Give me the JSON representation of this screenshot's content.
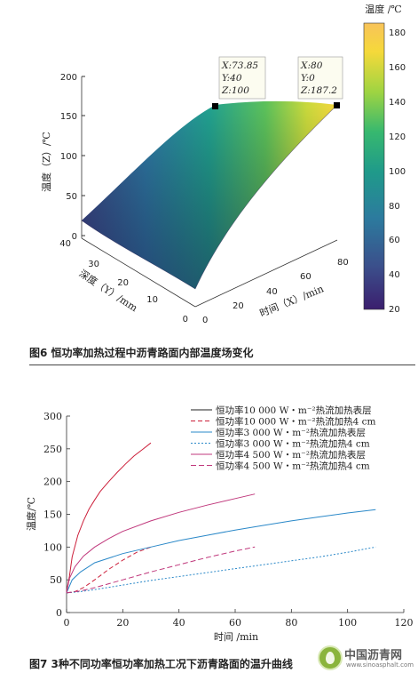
{
  "chart_data": [
    {
      "type": "surface",
      "caption": "图6  恒功率加热过程中沥青路面内部温度场变化",
      "zlabel": "温度（Z）/℃",
      "xlabel": "时间（X）/min",
      "ylabel": "深度（Y）/mm",
      "xticks": [
        "0",
        "20",
        "40",
        "60",
        "80"
      ],
      "yticks": [
        "0",
        "10",
        "20",
        "30",
        "40"
      ],
      "zticks": [
        "0",
        "50",
        "100",
        "150",
        "200"
      ],
      "xlim": [
        0,
        80
      ],
      "ylim": [
        0,
        40
      ],
      "zlim": [
        0,
        200
      ],
      "colorbar": {
        "label": "温度 /℃",
        "ticks": [
          "20",
          "40",
          "60",
          "80",
          "100",
          "120",
          "140",
          "160",
          "180"
        ],
        "range": [
          20,
          187
        ],
        "colors": [
          "#3b1f6e",
          "#3b4f8b",
          "#2c7b9e",
          "#1f9a8a",
          "#37b86f",
          "#9fd442",
          "#f5d93a",
          "#f8c35a"
        ]
      },
      "datatips": [
        {
          "x": 73.85,
          "y": 40,
          "z": 100,
          "x_text": "X:73.85",
          "y_text": "Y:40",
          "z_text": "Z:100"
        },
        {
          "x": 80,
          "y": 0,
          "z": 187.2,
          "x_text": "X:80",
          "y_text": "Y:0",
          "z_text": "Z:187.2"
        }
      ]
    },
    {
      "type": "line",
      "caption": "图7  3种不同功率恒功率加热工况下沥青路面的温升曲线",
      "xlabel": "时间 /min",
      "ylabel": "温度/℃",
      "xlim": [
        0,
        120
      ],
      "ylim": [
        0,
        300
      ],
      "xticks": [
        "0",
        "20",
        "40",
        "60",
        "80",
        "100",
        "120"
      ],
      "yticks": [
        "0",
        "50",
        "100",
        "150",
        "200",
        "250",
        "300"
      ],
      "series": [
        {
          "name": "恒功率10 000 W・m⁻²热流加热表层",
          "color": "#cc1f3a",
          "dash": "none",
          "x": [
            0,
            1,
            2,
            4,
            6,
            8,
            10,
            12,
            15,
            18,
            21,
            24,
            27,
            30
          ],
          "y": [
            32,
            55,
            85,
            118,
            140,
            158,
            172,
            185,
            200,
            214,
            227,
            239,
            249,
            259
          ]
        },
        {
          "name": "恒功率10 000 W・m⁻²热流加热4 cm",
          "color": "#cc1f3a",
          "dash": "5,3",
          "x": [
            0,
            3,
            6,
            10,
            15,
            20,
            25,
            30
          ],
          "y": [
            30,
            32,
            38,
            50,
            66,
            80,
            92,
            100
          ]
        },
        {
          "name": "恒功率3 000 W・m⁻²热流加热表层",
          "color": "#2a88c8",
          "dash": "none",
          "x": [
            0,
            2,
            5,
            10,
            20,
            30,
            40,
            50,
            60,
            70,
            80,
            90,
            100,
            110
          ],
          "y": [
            30,
            50,
            62,
            76,
            90,
            100,
            110,
            118,
            126,
            133,
            140,
            146,
            152,
            157
          ]
        },
        {
          "name": "恒功率3 000 W・m⁻²热流加热4 cm",
          "color": "#2a88c8",
          "dash": "2,2",
          "x": [
            0,
            5,
            10,
            20,
            30,
            40,
            50,
            60,
            70,
            80,
            90,
            100,
            110
          ],
          "y": [
            30,
            32,
            35,
            42,
            49,
            55,
            61,
            67,
            73,
            79,
            85,
            92,
            100
          ]
        },
        {
          "name": "恒功率4 500 W・m⁻²热流加热表层",
          "color": "#c0387c",
          "dash": "none",
          "x": [
            0,
            1,
            3,
            6,
            10,
            15,
            20,
            30,
            40,
            50,
            60,
            67
          ],
          "y": [
            30,
            52,
            70,
            86,
            100,
            113,
            124,
            140,
            153,
            164,
            174,
            181
          ]
        },
        {
          "name": "恒功率4 500 W・m⁻²热流加热4 cm",
          "color": "#c0387c",
          "dash": "6,3",
          "x": [
            0,
            5,
            10,
            20,
            30,
            40,
            50,
            60,
            67
          ],
          "y": [
            30,
            33,
            38,
            50,
            62,
            73,
            84,
            94,
            100
          ]
        }
      ]
    }
  ],
  "watermark": {
    "name": "中国沥青网",
    "url": "www.sinoasphalt.com"
  }
}
